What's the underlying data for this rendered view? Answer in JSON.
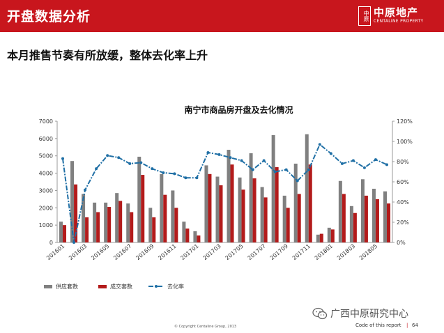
{
  "header": {
    "title": "开盘数据分析"
  },
  "logo": {
    "seal": "中原",
    "name_cn": "中原地产",
    "name_en": "CENTALINE PROPERTY"
  },
  "subtitle": "本月推售节奏有所放缓，整体去化率上升",
  "colors": {
    "brand_red": "#c8161d",
    "supply": "#808080",
    "sales": "#b31b1b",
    "rate": "#1f6fa5"
  },
  "chart_data": {
    "type": "bar",
    "title": "南宁市商品房开盘及去化情况",
    "categories": [
      "201601",
      "201602",
      "201603",
      "201604",
      "201605",
      "201606",
      "201607",
      "201608",
      "201609",
      "201610",
      "201611",
      "201612",
      "201701",
      "201702",
      "201703",
      "201704",
      "201705",
      "201706",
      "201707",
      "201708",
      "201709",
      "201710",
      "201711",
      "201712",
      "201801",
      "201802",
      "201803",
      "201804",
      "201805",
      "201806"
    ],
    "x_tick_labels": [
      "201601",
      "201603",
      "201605",
      "201607",
      "201609",
      "201611",
      "201701",
      "201703",
      "201705",
      "201707",
      "201709",
      "201711",
      "201801",
      "201803",
      "201805"
    ],
    "series": [
      {
        "name": "供应套数",
        "type": "bar",
        "axis": "left",
        "values": [
          1200,
          4700,
          2800,
          2300,
          2300,
          2850,
          2250,
          4950,
          2000,
          3950,
          3000,
          1200,
          650,
          4450,
          3800,
          5350,
          3750,
          5150,
          3200,
          6200,
          2700,
          4550,
          6250,
          450,
          850,
          3550,
          2100,
          3650,
          3100,
          2950
        ]
      },
      {
        "name": "成交套数",
        "type": "bar",
        "axis": "left",
        "values": [
          1000,
          3350,
          1450,
          1750,
          2050,
          2400,
          1750,
          3900,
          1450,
          2750,
          2000,
          800,
          400,
          3950,
          3300,
          4500,
          3050,
          3700,
          2600,
          4350,
          2000,
          2800,
          4500,
          500,
          750,
          2800,
          1700,
          2700,
          2500,
          2250
        ]
      },
      {
        "name": "去化率",
        "type": "line",
        "axis": "right",
        "values": [
          83,
          0,
          52,
          73,
          86,
          84,
          78,
          79,
          73,
          69,
          68,
          64,
          64,
          89,
          87,
          84,
          81,
          72,
          81,
          70,
          72,
          61,
          72,
          97,
          88,
          78,
          81,
          74,
          82,
          77
        ]
      }
    ],
    "y_left": {
      "min": 0,
      "max": 7000,
      "step": 1000
    },
    "y_right": {
      "min": 0,
      "max": 120,
      "step": 20,
      "unit": "%"
    },
    "legend_position": "bottom-left",
    "grid": false
  },
  "footer": {
    "copyright": "© Copyright Centaline Group, 2013",
    "code": "Code of this report",
    "separator": "|",
    "page": "64",
    "watermark": "广西中原研究中心"
  }
}
